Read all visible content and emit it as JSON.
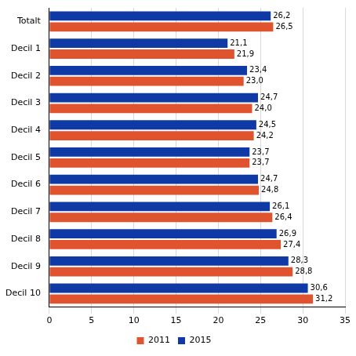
{
  "chart_data": {
    "type": "bar",
    "orientation": "horizontal",
    "categories": [
      "Totalt",
      "Decil 1",
      "Decil 2",
      "Decil 3",
      "Decil 4",
      "Decil 5",
      "Decil 6",
      "Decil 7",
      "Decil 8",
      "Decil 9",
      "Decil 10"
    ],
    "series": [
      {
        "name": "2011",
        "color": "#e0532f",
        "values": [
          26.5,
          21.9,
          23.0,
          24.0,
          24.2,
          23.7,
          24.8,
          26.4,
          27.4,
          28.8,
          31.2
        ],
        "value_labels": [
          "26,5",
          "21,9",
          "23,0",
          "24,0",
          "24,2",
          "23,7",
          "24,8",
          "26,4",
          "27,4",
          "28,8",
          "31,2"
        ]
      },
      {
        "name": "2015",
        "color": "#0f3aa5",
        "values": [
          26.2,
          21.1,
          23.4,
          24.7,
          24.5,
          23.7,
          24.7,
          26.1,
          26.9,
          28.3,
          30.6
        ],
        "value_labels": [
          "26,2",
          "21,1",
          "23,4",
          "24,7",
          "24,5",
          "23,7",
          "24,7",
          "26,1",
          "26,9",
          "28,3",
          "30,6"
        ]
      }
    ],
    "xlim": [
      0,
      35
    ],
    "xticks": [
      0,
      5,
      10,
      15,
      20,
      25,
      30,
      35
    ],
    "grid": true,
    "legend": "bottom",
    "data_labels": true
  }
}
